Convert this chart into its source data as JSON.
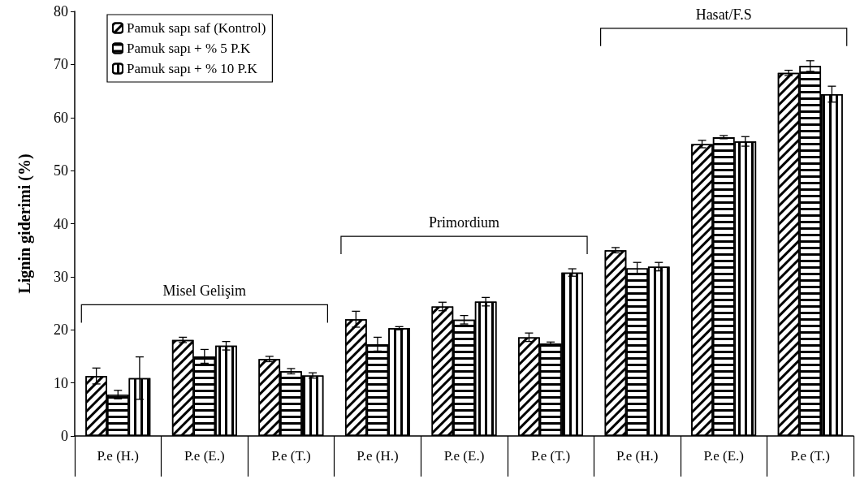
{
  "chart_data": {
    "type": "bar",
    "ylabel": "Lignin giderimi (%)",
    "categories": [
      "P.e (H.)",
      "P.e (E.)",
      "P.e (T.)",
      "P.e (H.)",
      "P.e (E.)",
      "P.e (T.)",
      "P.e (H.)",
      "P.e (E.)",
      "P.e (T.)"
    ],
    "series": [
      {
        "name": "Pamuk sapı saf (Kontrol)",
        "color": "#000000",
        "values": [
          11.3,
          18.1,
          14.5,
          22.0,
          24.4,
          18.6,
          35.0,
          55.0,
          68.4
        ],
        "errors": [
          1.5,
          0.5,
          0.5,
          1.5,
          0.8,
          0.8,
          0.5,
          0.7,
          0.5
        ]
      },
      {
        "name": "Pamuk sapı + % 5 P.K",
        "color": "#000000",
        "values": [
          7.8,
          15.0,
          12.2,
          17.3,
          21.9,
          17.4,
          31.6,
          56.3,
          69.7
        ],
        "errors": [
          0.8,
          1.3,
          0.5,
          1.3,
          0.8,
          0.3,
          1.1,
          0.3,
          1.0
        ]
      },
      {
        "name": "Pamuk sapı + % 10 P.K",
        "color": "#000000",
        "values": [
          10.9,
          17.0,
          11.4,
          20.3,
          25.3,
          30.8,
          31.9,
          55.5,
          64.4
        ],
        "errors": [
          4.0,
          0.8,
          0.5,
          0.3,
          0.8,
          0.7,
          0.8,
          0.9,
          1.5
        ]
      }
    ],
    "ylim": [
      0,
      80
    ],
    "yticks": [
      0,
      10,
      20,
      30,
      40,
      50,
      60,
      70,
      80
    ],
    "grid": false,
    "legend": "top left",
    "annotations": [
      "Misel Gelişim",
      "Primordium",
      "Hasat/F.S"
    ]
  }
}
